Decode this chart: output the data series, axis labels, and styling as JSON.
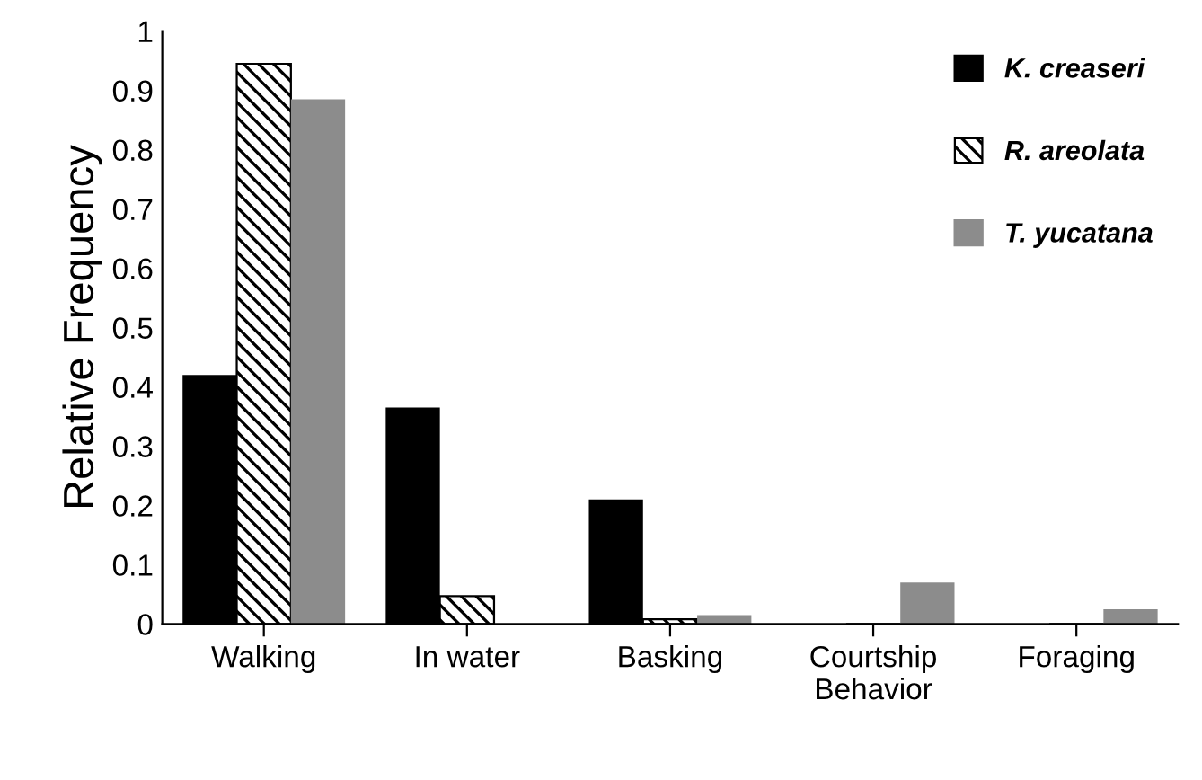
{
  "chart_data": {
    "type": "bar",
    "ylabel": "Relative Frequency",
    "categories": [
      "Walking",
      "In water",
      "Basking",
      "Courtship\nBehavior",
      "Foraging"
    ],
    "series": [
      {
        "name": "K. creaseri",
        "color": "#000000",
        "values": [
          0.42,
          0.365,
          0.21,
          0,
          0
        ]
      },
      {
        "name": "R. areolata",
        "color": "#000000",
        "values": [
          0.945,
          0.047,
          0.008,
          0,
          0
        ]
      },
      {
        "name": "T. yucatana",
        "color": "#8c8c8c",
        "values": [
          0.885,
          0,
          0.015,
          0.07,
          0.025
        ]
      }
    ],
    "ylim": [
      0,
      1
    ],
    "yticks": [
      0,
      0.1,
      0.2,
      0.3,
      0.4,
      0.5,
      0.6,
      0.7,
      0.8,
      0.9,
      1
    ],
    "grid": false,
    "legend": "top right"
  }
}
